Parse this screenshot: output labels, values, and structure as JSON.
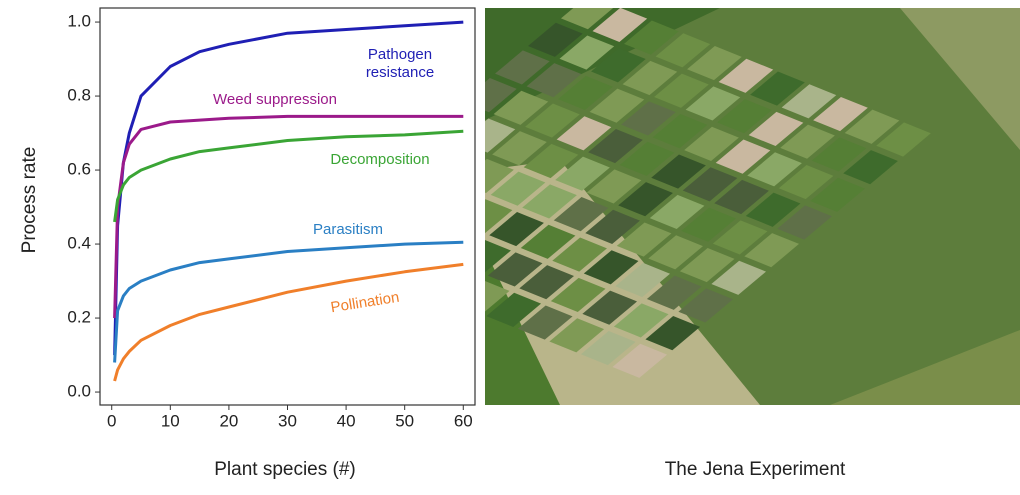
{
  "chart_data": {
    "type": "line",
    "y_label": "Process rate",
    "x_label": "Plant species (#)",
    "photo_caption": "The Jena Experiment",
    "x": [
      0.5,
      1,
      2,
      3,
      5,
      10,
      15,
      20,
      30,
      40,
      50,
      60
    ],
    "series": [
      {
        "name": "Pathogen resistance",
        "color": "#1f1fb4",
        "values": [
          0.1,
          0.45,
          0.62,
          0.7,
          0.8,
          0.88,
          0.92,
          0.94,
          0.97,
          0.98,
          0.99,
          1.0
        ]
      },
      {
        "name": "Weed suppression",
        "color": "#9b1a8a",
        "values": [
          0.2,
          0.5,
          0.62,
          0.67,
          0.71,
          0.73,
          0.735,
          0.74,
          0.745,
          0.745,
          0.745,
          0.745
        ]
      },
      {
        "name": "Decomposition",
        "color": "#3aa535",
        "values": [
          0.46,
          0.52,
          0.56,
          0.58,
          0.6,
          0.63,
          0.65,
          0.66,
          0.68,
          0.69,
          0.695,
          0.705
        ]
      },
      {
        "name": "Parasitism",
        "color": "#2a7fc4",
        "values": [
          0.08,
          0.22,
          0.26,
          0.28,
          0.3,
          0.33,
          0.35,
          0.36,
          0.38,
          0.39,
          0.4,
          0.405
        ]
      },
      {
        "name": "Pollination",
        "color": "#f07f2a",
        "values": [
          0.03,
          0.06,
          0.09,
          0.11,
          0.14,
          0.18,
          0.21,
          0.23,
          0.27,
          0.3,
          0.325,
          0.345
        ]
      }
    ],
    "xlim": [
      -2,
      62
    ],
    "ylim": [
      -0.035,
      1.038
    ],
    "xticks": [
      0,
      10,
      20,
      30,
      40,
      50,
      60
    ],
    "yticks": [
      {
        "value": 0,
        "label": "0.0"
      },
      0.2,
      0.4,
      0.6,
      0.8,
      {
        "value": 1,
        "label": "1.0"
      }
    ]
  }
}
